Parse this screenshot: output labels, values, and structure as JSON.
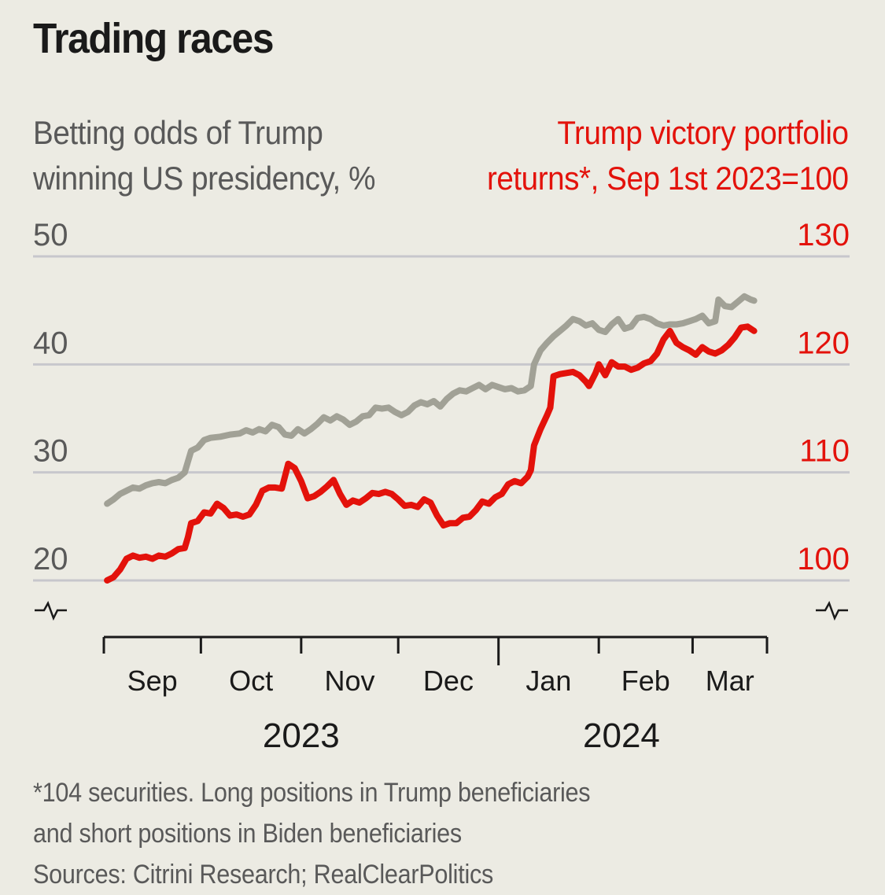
{
  "chart_data": {
    "type": "line",
    "title": "Trading races",
    "left_axis": {
      "label_lines": [
        "Betting odds of Trump",
        "winning US presidency, %"
      ],
      "ticks": [
        20,
        30,
        40,
        50
      ],
      "range": [
        20,
        50
      ],
      "color": "#595959"
    },
    "right_axis": {
      "label_lines": [
        "Trump victory portfolio",
        "returns*, Sep 1st 2023=100"
      ],
      "ticks": [
        100,
        110,
        120,
        130
      ],
      "range": [
        100,
        130
      ],
      "color": "#e3120b"
    },
    "x_axis": {
      "start": "2023-09-01",
      "end": "2024-03-24",
      "month_ticks": [
        {
          "label": "Sep",
          "day": 0
        },
        {
          "label": "Oct",
          "day": 30
        },
        {
          "label": "Nov",
          "day": 61
        },
        {
          "label": "Dec",
          "day": 91
        },
        {
          "label": "Jan",
          "day": 122
        },
        {
          "label": "Feb",
          "day": 153
        },
        {
          "label": "Mar",
          "day": 182
        }
      ],
      "end_day": 205,
      "year_labels": [
        {
          "label": "2023",
          "day": 61
        },
        {
          "label": "2024",
          "day": 160
        }
      ],
      "year_break_day": 122
    },
    "grid": true,
    "series": [
      {
        "name": "Betting odds of Trump winning US presidency, %",
        "axis": "left",
        "color": "#a1a196",
        "points": [
          [
            1,
            27.1
          ],
          [
            3,
            27.5
          ],
          [
            5,
            28.0
          ],
          [
            7,
            28.3
          ],
          [
            9,
            28.6
          ],
          [
            11,
            28.5
          ],
          [
            13,
            28.8
          ],
          [
            15,
            29.0
          ],
          [
            17,
            29.1
          ],
          [
            19,
            29.0
          ],
          [
            21,
            29.3
          ],
          [
            23,
            29.5
          ],
          [
            25,
            30.0
          ],
          [
            26,
            31.0
          ],
          [
            27,
            32.0
          ],
          [
            29,
            32.3
          ],
          [
            31,
            33.0
          ],
          [
            33,
            33.2
          ],
          [
            36,
            33.3
          ],
          [
            39,
            33.5
          ],
          [
            42,
            33.6
          ],
          [
            44,
            33.9
          ],
          [
            46,
            33.7
          ],
          [
            48,
            34.0
          ],
          [
            50,
            33.8
          ],
          [
            52,
            34.4
          ],
          [
            54,
            34.2
          ],
          [
            56,
            33.5
          ],
          [
            58,
            33.4
          ],
          [
            60,
            34.0
          ],
          [
            62,
            33.6
          ],
          [
            64,
            34.0
          ],
          [
            66,
            34.5
          ],
          [
            68,
            35.1
          ],
          [
            70,
            34.8
          ],
          [
            72,
            35.2
          ],
          [
            74,
            34.9
          ],
          [
            76,
            34.4
          ],
          [
            78,
            34.7
          ],
          [
            80,
            35.2
          ],
          [
            82,
            35.3
          ],
          [
            84,
            36.0
          ],
          [
            86,
            35.9
          ],
          [
            88,
            36.0
          ],
          [
            90,
            35.6
          ],
          [
            92,
            35.3
          ],
          [
            94,
            35.6
          ],
          [
            96,
            36.2
          ],
          [
            98,
            36.5
          ],
          [
            100,
            36.3
          ],
          [
            102,
            36.6
          ],
          [
            104,
            36.1
          ],
          [
            106,
            36.8
          ],
          [
            108,
            37.3
          ],
          [
            110,
            37.6
          ],
          [
            112,
            37.5
          ],
          [
            114,
            37.8
          ],
          [
            116,
            38.1
          ],
          [
            118,
            37.7
          ],
          [
            120,
            38.1
          ],
          [
            122,
            37.9
          ],
          [
            124,
            37.7
          ],
          [
            126,
            37.8
          ],
          [
            128,
            37.5
          ],
          [
            130,
            37.6
          ],
          [
            132,
            38.0
          ],
          [
            133,
            40.0
          ],
          [
            135,
            41.3
          ],
          [
            137,
            42.0
          ],
          [
            139,
            42.6
          ],
          [
            141,
            43.1
          ],
          [
            143,
            43.6
          ],
          [
            145,
            44.2
          ],
          [
            147,
            44.0
          ],
          [
            149,
            43.6
          ],
          [
            151,
            43.8
          ],
          [
            153,
            43.2
          ],
          [
            155,
            43.0
          ],
          [
            157,
            43.7
          ],
          [
            159,
            44.2
          ],
          [
            161,
            43.3
          ],
          [
            163,
            43.5
          ],
          [
            165,
            44.3
          ],
          [
            167,
            44.4
          ],
          [
            169,
            44.2
          ],
          [
            171,
            43.8
          ],
          [
            173,
            43.6
          ],
          [
            175,
            43.7
          ],
          [
            177,
            43.7
          ],
          [
            179,
            43.8
          ],
          [
            181,
            44.0
          ],
          [
            183,
            44.2
          ],
          [
            185,
            44.5
          ],
          [
            187,
            43.8
          ],
          [
            189,
            44.0
          ],
          [
            190,
            46.0
          ],
          [
            192,
            45.4
          ],
          [
            194,
            45.3
          ],
          [
            196,
            45.8
          ],
          [
            198,
            46.3
          ],
          [
            200,
            46.0
          ],
          [
            201,
            45.9
          ]
        ]
      },
      {
        "name": "Trump victory portfolio returns*, Sep 1st 2023=100",
        "axis": "right",
        "color": "#e3120b",
        "points": [
          [
            1,
            100.0
          ],
          [
            3,
            100.3
          ],
          [
            5,
            101.0
          ],
          [
            7,
            102.0
          ],
          [
            9,
            102.3
          ],
          [
            11,
            102.1
          ],
          [
            13,
            102.2
          ],
          [
            15,
            102.0
          ],
          [
            17,
            102.3
          ],
          [
            19,
            102.2
          ],
          [
            21,
            102.5
          ],
          [
            23,
            102.9
          ],
          [
            25,
            103.0
          ],
          [
            26,
            104.0
          ],
          [
            27,
            105.3
          ],
          [
            29,
            105.5
          ],
          [
            31,
            106.3
          ],
          [
            33,
            106.2
          ],
          [
            35,
            107.1
          ],
          [
            37,
            106.7
          ],
          [
            39,
            106.0
          ],
          [
            41,
            106.1
          ],
          [
            43,
            105.9
          ],
          [
            45,
            106.1
          ],
          [
            47,
            107.0
          ],
          [
            49,
            108.3
          ],
          [
            51,
            108.6
          ],
          [
            53,
            108.6
          ],
          [
            55,
            108.5
          ],
          [
            57,
            110.8
          ],
          [
            59,
            110.4
          ],
          [
            61,
            109.2
          ],
          [
            63,
            107.6
          ],
          [
            65,
            107.8
          ],
          [
            67,
            108.2
          ],
          [
            69,
            108.7
          ],
          [
            71,
            109.3
          ],
          [
            73,
            108.0
          ],
          [
            75,
            107.0
          ],
          [
            77,
            107.4
          ],
          [
            79,
            107.2
          ],
          [
            81,
            107.6
          ],
          [
            83,
            108.1
          ],
          [
            85,
            108.0
          ],
          [
            87,
            108.2
          ],
          [
            89,
            108.0
          ],
          [
            91,
            107.5
          ],
          [
            93,
            106.9
          ],
          [
            95,
            107.0
          ],
          [
            97,
            106.8
          ],
          [
            99,
            107.5
          ],
          [
            101,
            107.2
          ],
          [
            103,
            106.0
          ],
          [
            105,
            105.1
          ],
          [
            107,
            105.3
          ],
          [
            109,
            105.3
          ],
          [
            111,
            105.8
          ],
          [
            113,
            105.9
          ],
          [
            115,
            106.5
          ],
          [
            117,
            107.3
          ],
          [
            119,
            107.1
          ],
          [
            121,
            107.7
          ],
          [
            123,
            108.0
          ],
          [
            125,
            108.9
          ],
          [
            127,
            109.2
          ],
          [
            129,
            109.0
          ],
          [
            131,
            109.6
          ],
          [
            132,
            110.2
          ],
          [
            133,
            112.5
          ],
          [
            135,
            114.0
          ],
          [
            137,
            115.3
          ],
          [
            138,
            116.0
          ],
          [
            139,
            118.9
          ],
          [
            141,
            119.1
          ],
          [
            143,
            119.2
          ],
          [
            145,
            119.3
          ],
          [
            147,
            119.0
          ],
          [
            149,
            118.4
          ],
          [
            150,
            118.0
          ],
          [
            152,
            119.2
          ],
          [
            153,
            120.0
          ],
          [
            155,
            119.0
          ],
          [
            157,
            120.2
          ],
          [
            159,
            119.8
          ],
          [
            161,
            119.8
          ],
          [
            163,
            119.5
          ],
          [
            165,
            119.7
          ],
          [
            167,
            120.1
          ],
          [
            169,
            120.3
          ],
          [
            171,
            121.0
          ],
          [
            173,
            122.3
          ],
          [
            175,
            123.1
          ],
          [
            177,
            122.0
          ],
          [
            179,
            121.6
          ],
          [
            181,
            121.3
          ],
          [
            183,
            120.9
          ],
          [
            185,
            121.6
          ],
          [
            187,
            121.2
          ],
          [
            189,
            121.0
          ],
          [
            191,
            121.3
          ],
          [
            193,
            121.8
          ],
          [
            195,
            122.5
          ],
          [
            197,
            123.4
          ],
          [
            199,
            123.5
          ],
          [
            201,
            123.1
          ]
        ]
      }
    ]
  },
  "header": {
    "title": "Trading races"
  },
  "footnote": {
    "lines": [
      "*104 securities. Long positions in Trump beneficiaries",
      "and short positions in Biden beneficiaries",
      "Sources: Citrini Research; RealClearPolitics"
    ]
  },
  "axis_break_icon": "axis-break-zigzag"
}
